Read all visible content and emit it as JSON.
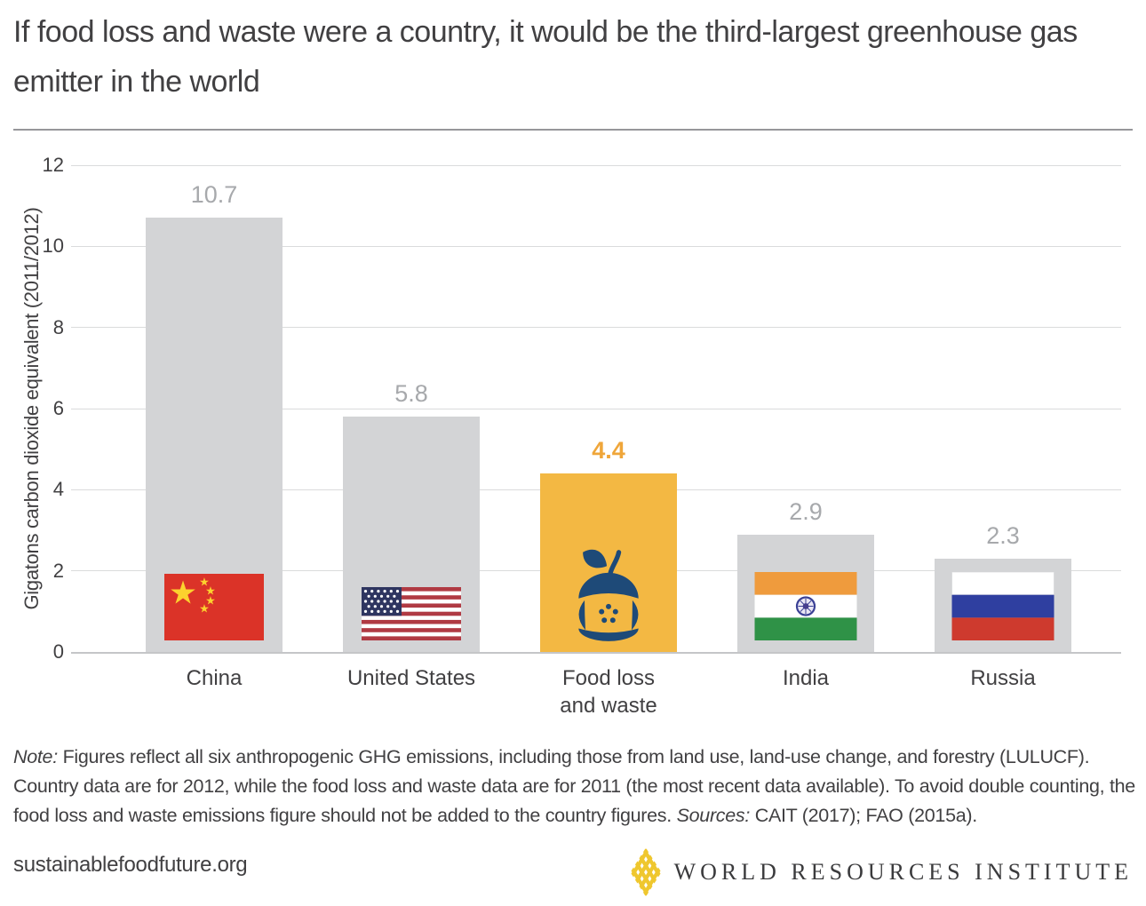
{
  "header": {
    "title": "If food loss and waste were a country, it would be the third-largest greenhouse gas emitter in the world"
  },
  "chart_data": {
    "type": "bar",
    "title": "If food loss and waste were a country, it would be the third-largest greenhouse gas emitter in the world",
    "ylabel": "Gigatons carbon dioxide equivalent (2011/2012)",
    "xlabel": "",
    "ylim": [
      0,
      12
    ],
    "yticks": [
      "0",
      "2",
      "4",
      "6",
      "8",
      "10",
      "12"
    ],
    "grid": true,
    "legend": "none",
    "categories": [
      "China",
      "United States",
      "Food loss\nand waste",
      "India",
      "Russia"
    ],
    "values": [
      10.7,
      5.8,
      4.4,
      2.9,
      2.3
    ],
    "value_labels": [
      "10.7",
      "5.8",
      "4.4",
      "2.9",
      "2.3"
    ],
    "highlight_index": 2,
    "icons": [
      "china-flag",
      "us-flag",
      "apple-core",
      "india-flag",
      "russia-flag"
    ],
    "colors": {
      "bar_default": "#d3d4d6",
      "bar_highlight": "#f3b843",
      "value_default": "#a7a9ac",
      "value_highlight": "#efa63a",
      "icon_navy": "#1e4a78"
    }
  },
  "note": {
    "label": "Note:",
    "text": " Figures reflect all six anthropogenic GHG emissions, including those from land use, land-use change, and forestry (LULUCF). Country data are for 2012, while the food loss and waste data are for 2011 (the most recent data available). To avoid double counting, the food loss and waste emissions figure should not be added to the country figures. ",
    "sources_label": "Sources:",
    "sources_text": " CAIT (2017); FAO (2015a)."
  },
  "footer": {
    "website": "sustainablefoodfuture.org",
    "organization": "WORLD RESOURCES INSTITUTE"
  }
}
